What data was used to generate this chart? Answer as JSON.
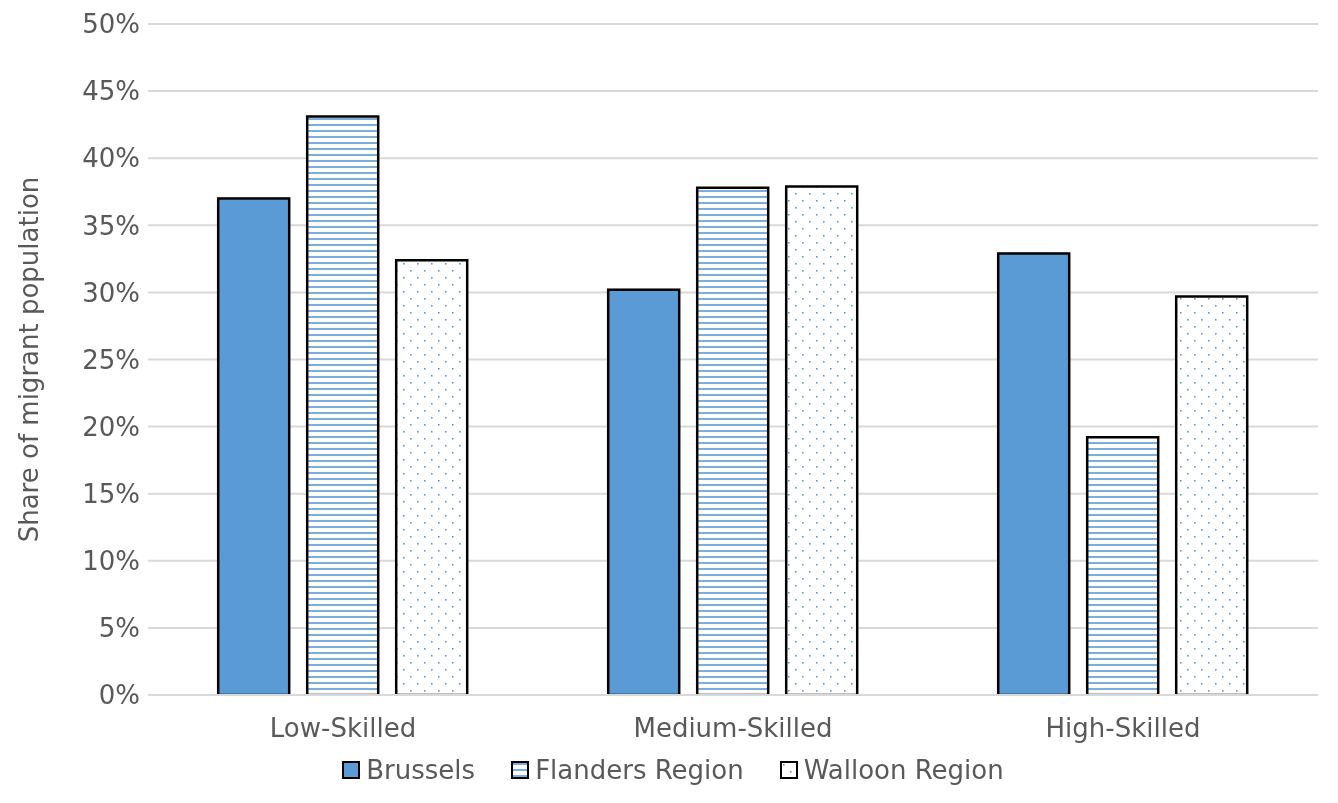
{
  "chart_data": {
    "type": "bar",
    "ylabel": "Share of migrant population",
    "categories": [
      "Low-Skilled",
      "Medium-Skilled",
      "High-Skilled"
    ],
    "series": [
      {
        "name": "Brussels",
        "color": "#5b9bd5",
        "values": [
          37.0,
          30.2,
          32.9
        ]
      },
      {
        "name": "Flanders Region",
        "color": "#5b9bd5",
        "values": [
          43.1,
          37.8,
          19.2
        ]
      },
      {
        "name": "Walloon Region",
        "color": "#5b9bd5",
        "values": [
          32.4,
          37.9,
          29.7
        ]
      }
    ],
    "ylim": [
      0,
      50
    ],
    "yticks": [
      {
        "value": 0,
        "label": "0%"
      },
      {
        "value": 5,
        "label": "5%"
      },
      {
        "value": 10,
        "label": "10%"
      },
      {
        "value": 15,
        "label": "15%"
      },
      {
        "value": 20,
        "label": "20%"
      },
      {
        "value": 25,
        "label": "25%"
      },
      {
        "value": 30,
        "label": "30%"
      },
      {
        "value": 35,
        "label": "35%"
      },
      {
        "value": 40,
        "label": "40%"
      },
      {
        "value": 45,
        "label": "45%"
      },
      {
        "value": 50,
        "label": "50%"
      }
    ],
    "grid": "y",
    "legend": "bottom"
  }
}
